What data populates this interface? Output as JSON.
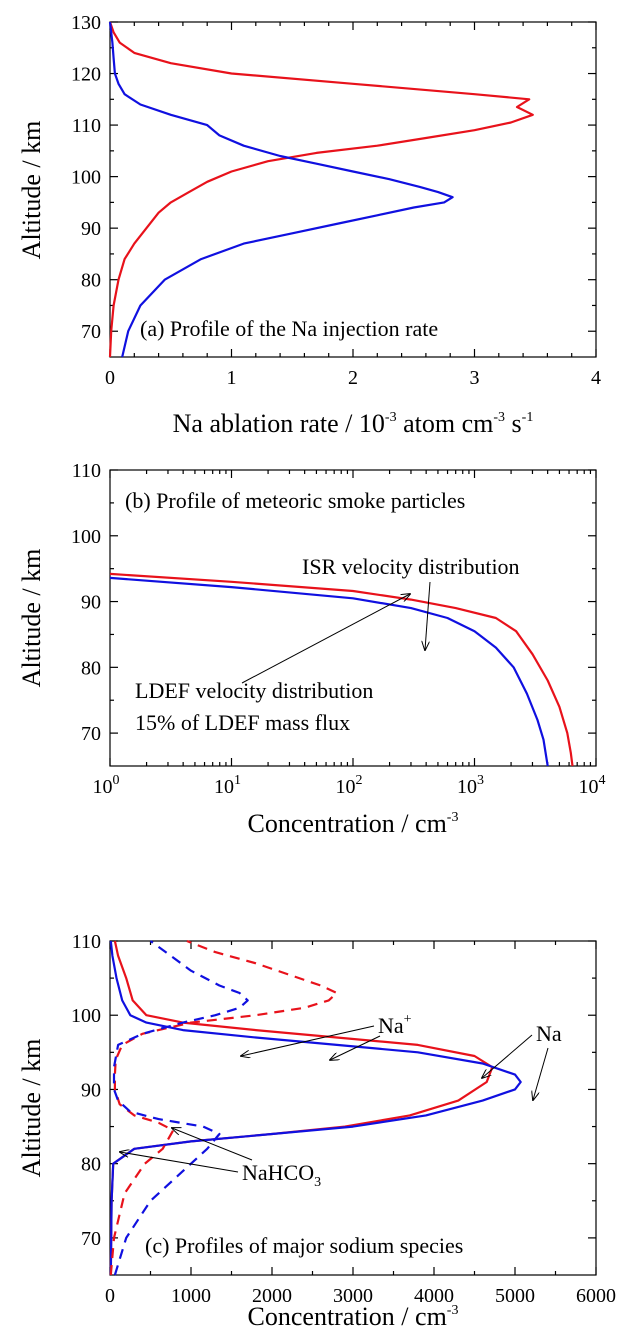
{
  "chart_data": [
    {
      "type": "line",
      "panel": "a",
      "annotation": "(a) Profile of the Na injection rate",
      "xlabel_main": "Na ablation rate / 10",
      "xlabel_exp1": "-3",
      "xlabel_mid": " atom cm",
      "xlabel_exp2": "-3",
      "xlabel_mid2": " s",
      "xlabel_exp3": "-1",
      "ylabel": "Altitude / km",
      "xlim": [
        0,
        4
      ],
      "ylim": [
        65,
        130
      ],
      "xticks": [
        "0",
        "1",
        "2",
        "3",
        "4"
      ],
      "yticks": [
        "70",
        "80",
        "90",
        "100",
        "110",
        "120",
        "130"
      ],
      "colors": {
        "red": "#e8121b",
        "blue": "#1010e0"
      },
      "series": [
        {
          "color": "red",
          "points": [
            [
              0.0,
              65
            ],
            [
              0.01,
              70
            ],
            [
              0.03,
              75
            ],
            [
              0.07,
              80
            ],
            [
              0.12,
              84
            ],
            [
              0.2,
              87
            ],
            [
              0.3,
              90
            ],
            [
              0.4,
              93
            ],
            [
              0.5,
              95
            ],
            [
              0.65,
              97
            ],
            [
              0.8,
              99
            ],
            [
              1.0,
              101
            ],
            [
              1.3,
              103
            ],
            [
              1.7,
              104.6
            ],
            [
              2.2,
              106
            ],
            [
              2.6,
              107.5
            ],
            [
              3.0,
              109
            ],
            [
              3.3,
              110.5
            ],
            [
              3.48,
              112
            ],
            [
              3.35,
              113.5
            ],
            [
              3.45,
              115
            ],
            [
              3.0,
              116
            ],
            [
              2.0,
              118
            ],
            [
              1.0,
              120
            ],
            [
              0.5,
              122
            ],
            [
              0.2,
              124
            ],
            [
              0.08,
              126
            ],
            [
              0.03,
              128
            ],
            [
              0.0,
              130
            ]
          ]
        },
        {
          "color": "blue",
          "points": [
            [
              0.1,
              65
            ],
            [
              0.15,
              70
            ],
            [
              0.25,
              75
            ],
            [
              0.45,
              80
            ],
            [
              0.75,
              84
            ],
            [
              1.1,
              87
            ],
            [
              1.5,
              89
            ],
            [
              1.9,
              91
            ],
            [
              2.2,
              92.5
            ],
            [
              2.5,
              94
            ],
            [
              2.75,
              95
            ],
            [
              2.82,
              96
            ],
            [
              2.7,
              97
            ],
            [
              2.55,
              98
            ],
            [
              2.3,
              99.5
            ],
            [
              2.0,
              101
            ],
            [
              1.7,
              102.5
            ],
            [
              1.4,
              104
            ],
            [
              1.1,
              106
            ],
            [
              0.9,
              108
            ],
            [
              0.8,
              110
            ],
            [
              0.5,
              112
            ],
            [
              0.25,
              114
            ],
            [
              0.12,
              116
            ],
            [
              0.07,
              118
            ],
            [
              0.04,
              120
            ],
            [
              0.03,
              123
            ],
            [
              0.02,
              126
            ],
            [
              0.0,
              130
            ]
          ]
        }
      ]
    },
    {
      "type": "line",
      "panel": "b",
      "annotation": "(b) Profile of meteoric smoke particles",
      "xlabel_main": "Concentration / cm",
      "xlabel_exp": "-3",
      "ylabel": "Altitude / km",
      "xscale": "log",
      "xlim": [
        1,
        10000
      ],
      "ylim": [
        65,
        110
      ],
      "xticks": [
        {
          "base": "10",
          "exp": "0"
        },
        {
          "base": "10",
          "exp": "1"
        },
        {
          "base": "10",
          "exp": "2"
        },
        {
          "base": "10",
          "exp": "3"
        },
        {
          "base": "10",
          "exp": "4"
        }
      ],
      "yticks": [
        "70",
        "80",
        "90",
        "100",
        "110"
      ],
      "labels": {
        "isr": "ISR velocity distribution",
        "ldef1": "LDEF velocity distribution",
        "ldef2": "15% of LDEF mass flux"
      },
      "series": [
        {
          "color": "red",
          "points": [
            [
              1,
              94.2
            ],
            [
              10,
              93.0
            ],
            [
              100,
              91.6
            ],
            [
              300,
              90.3
            ],
            [
              700,
              89.0
            ],
            [
              1500,
              87.5
            ],
            [
              2200,
              85.5
            ],
            [
              3000,
              82
            ],
            [
              4000,
              78
            ],
            [
              5000,
              74
            ],
            [
              5800,
              70
            ],
            [
              6200,
              67
            ],
            [
              6400,
              65
            ]
          ]
        },
        {
          "color": "blue",
          "points": [
            [
              1,
              93.6
            ],
            [
              10,
              92.2
            ],
            [
              100,
              90.5
            ],
            [
              300,
              89.0
            ],
            [
              600,
              87.5
            ],
            [
              1000,
              85.5
            ],
            [
              1500,
              83
            ],
            [
              2100,
              80
            ],
            [
              2700,
              76
            ],
            [
              3300,
              72
            ],
            [
              3700,
              69
            ],
            [
              4000,
              65
            ]
          ]
        }
      ]
    },
    {
      "type": "line",
      "panel": "c",
      "annotation": "(c) Profiles of major sodium species",
      "xlabel_main": "Concentration / cm",
      "xlabel_exp": "-3",
      "ylabel": "Altitude / km",
      "xlim": [
        0,
        6000
      ],
      "ylim": [
        65,
        110
      ],
      "xticks": [
        "0",
        "1000",
        "2000",
        "3000",
        "4000",
        "5000",
        "6000"
      ],
      "yticks": [
        "70",
        "80",
        "90",
        "100",
        "110"
      ],
      "labels": {
        "na_plus": "Na",
        "na_plus_sup": "+",
        "na": "Na",
        "nahco3": "NaHCO",
        "nahco3_sub": "3"
      },
      "series": [
        {
          "color": "red",
          "dash": false,
          "points": [
            [
              10,
              65
            ],
            [
              20,
              75
            ],
            [
              40,
              80
            ],
            [
              300,
              82
            ],
            [
              1000,
              83
            ],
            [
              2000,
              84
            ],
            [
              2900,
              85
            ],
            [
              3700,
              86.5
            ],
            [
              4300,
              88.5
            ],
            [
              4650,
              91
            ],
            [
              4720,
              93
            ],
            [
              4500,
              94.5
            ],
            [
              3800,
              96
            ],
            [
              2800,
              97
            ],
            [
              1800,
              98
            ],
            [
              900,
              99
            ],
            [
              450,
              100
            ],
            [
              280,
              102
            ],
            [
              200,
              105
            ],
            [
              100,
              108
            ],
            [
              60,
              110
            ]
          ]
        },
        {
          "color": "blue",
          "dash": false,
          "points": [
            [
              10,
              65
            ],
            [
              20,
              75
            ],
            [
              40,
              80
            ],
            [
              300,
              82
            ],
            [
              1000,
              83
            ],
            [
              2000,
              84
            ],
            [
              3000,
              85
            ],
            [
              3900,
              86.5
            ],
            [
              4600,
              88.5
            ],
            [
              5000,
              90
            ],
            [
              5070,
              91
            ],
            [
              5000,
              92
            ],
            [
              4600,
              93.5
            ],
            [
              3800,
              95
            ],
            [
              2800,
              96
            ],
            [
              1800,
              97
            ],
            [
              900,
              98
            ],
            [
              450,
              99
            ],
            [
              250,
              100
            ],
            [
              150,
              102
            ],
            [
              80,
              105
            ],
            [
              30,
              108
            ],
            [
              10,
              110
            ]
          ]
        },
        {
          "color": "red",
          "dash": true,
          "points": [
            [
              10,
              65
            ],
            [
              50,
              70
            ],
            [
              180,
              76
            ],
            [
              430,
              80
            ],
            [
              650,
              82
            ],
            [
              780,
              84.5
            ],
            [
              600,
              85.5
            ],
            [
              300,
              86.5
            ],
            [
              120,
              88
            ],
            [
              60,
              90
            ],
            [
              60,
              92
            ],
            [
              70,
              94
            ],
            [
              150,
              96
            ],
            [
              400,
              97.5
            ],
            [
              1000,
              99
            ],
            [
              1800,
              100
            ],
            [
              2400,
              101
            ],
            [
              2700,
              102
            ],
            [
              2800,
              103
            ],
            [
              2600,
              104
            ],
            [
              2200,
              105.5
            ],
            [
              1800,
              107
            ],
            [
              1300,
              108.5
            ],
            [
              950,
              110
            ]
          ]
        },
        {
          "color": "blue",
          "dash": true,
          "points": [
            [
              60,
              65
            ],
            [
              200,
              70
            ],
            [
              500,
              75
            ],
            [
              900,
              79
            ],
            [
              1200,
              82
            ],
            [
              1350,
              84
            ],
            [
              1150,
              85
            ],
            [
              600,
              86
            ],
            [
              250,
              87
            ],
            [
              100,
              88.5
            ],
            [
              50,
              90
            ],
            [
              50,
              93
            ],
            [
              100,
              96
            ],
            [
              400,
              97.5
            ],
            [
              900,
              99
            ],
            [
              1300,
              100
            ],
            [
              1600,
              101
            ],
            [
              1700,
              102
            ],
            [
              1600,
              103
            ],
            [
              1350,
              104
            ],
            [
              1000,
              106
            ],
            [
              750,
              108
            ],
            [
              500,
              110
            ]
          ]
        }
      ]
    }
  ]
}
